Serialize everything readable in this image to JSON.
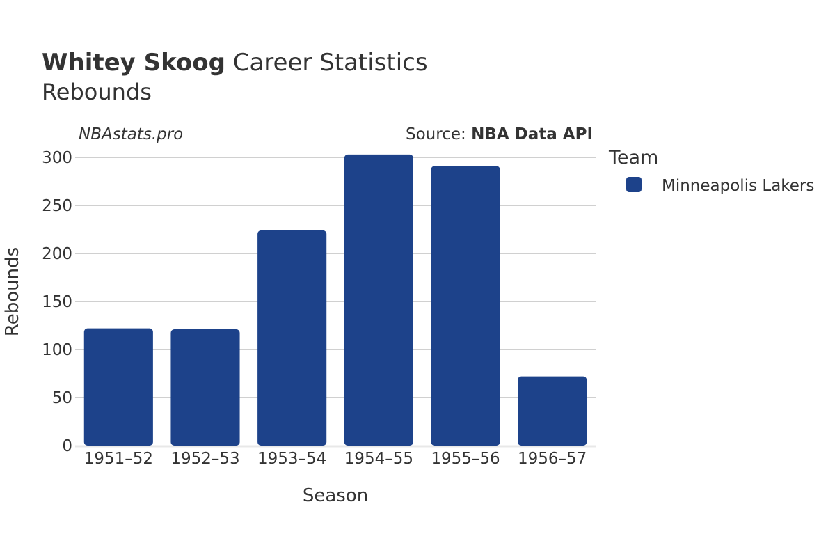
{
  "header": {
    "title_bold": "Whitey Skoog",
    "title_rest": " Career Statistics",
    "subtitle": "Rebounds",
    "watermark": "NBAstats.pro",
    "source_prefix": "Source: ",
    "source_name": "NBA Data API"
  },
  "legend": {
    "title": "Team",
    "items": [
      {
        "label": "Minneapolis Lakers",
        "color": "#1d428a"
      }
    ]
  },
  "chart_data": {
    "type": "bar",
    "title": "Whitey Skoog Career Statistics",
    "subtitle": "Rebounds",
    "xlabel": "Season",
    "ylabel": "Rebounds",
    "categories": [
      "1951–52",
      "1952–53",
      "1953–54",
      "1954–55",
      "1955–56",
      "1956–57"
    ],
    "series": [
      {
        "name": "Minneapolis Lakers",
        "color": "#1d428a",
        "values": [
          122,
          121,
          224,
          303,
          291,
          72
        ]
      }
    ],
    "ylim": [
      0,
      300
    ],
    "yticks": [
      0,
      50,
      100,
      150,
      200,
      250,
      300
    ],
    "grid": true,
    "legend_position": "right"
  }
}
